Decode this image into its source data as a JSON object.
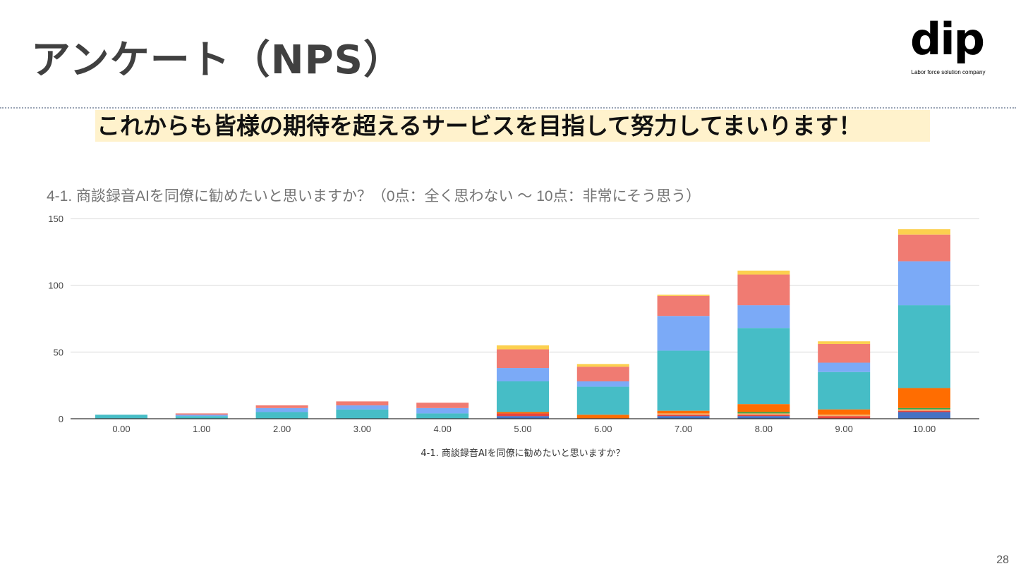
{
  "slide": {
    "title": "アンケート（NPS）",
    "tagline": "これからも皆様の期待を超えるサービスを目指して努力してまいります！",
    "page_number": "28"
  },
  "logo": {
    "word": "dip",
    "tag": "Labor force solution company"
  },
  "chart_data": {
    "type": "bar",
    "stacked": true,
    "title": "4-1. 商談録音AIを同僚に勧めたいと思いますか？（0点：全く思わない 〜 10点：非常にそう思う）",
    "xlabel": "4-1. 商談録音AIを同僚に勧めたいと思いますか？",
    "ylabel": "",
    "ylim": [
      0,
      150
    ],
    "yticks": [
      0,
      50,
      100,
      150
    ],
    "grid": true,
    "categories": [
      "0.00",
      "1.00",
      "2.00",
      "3.00",
      "4.00",
      "5.00",
      "6.00",
      "7.00",
      "8.00",
      "9.00",
      "10.00"
    ],
    "series": [
      {
        "color": "#4472c4",
        "values": [
          0,
          0,
          0,
          0,
          0,
          2,
          0,
          2,
          2,
          0,
          5
        ]
      },
      {
        "color": "#e8453c",
        "values": [
          0,
          0,
          0,
          0,
          0,
          2,
          0,
          1,
          1,
          2,
          1
        ]
      },
      {
        "color": "#f6b26b",
        "values": [
          0,
          0,
          0,
          0,
          0,
          0,
          0,
          1,
          1,
          1,
          1
        ]
      },
      {
        "color": "#34a853",
        "values": [
          0,
          0,
          0,
          0,
          0,
          0,
          0,
          0,
          1,
          0,
          1
        ]
      },
      {
        "color": "#ff6d01",
        "values": [
          0,
          0,
          0,
          0,
          0,
          1,
          3,
          2,
          6,
          4,
          15
        ]
      },
      {
        "color": "#46bdc6",
        "values": [
          3,
          2,
          5,
          7,
          4,
          23,
          21,
          45,
          57,
          28,
          62
        ]
      },
      {
        "color": "#7baaf7",
        "values": [
          0,
          1,
          3,
          3,
          4,
          10,
          4,
          26,
          17,
          7,
          33
        ]
      },
      {
        "color": "#f07b72",
        "values": [
          0,
          1,
          2,
          3,
          4,
          14,
          11,
          15,
          23,
          14,
          20
        ]
      },
      {
        "color": "#fcd04f",
        "values": [
          0,
          0,
          0,
          0,
          0,
          3,
          2,
          1,
          3,
          2,
          4
        ]
      }
    ]
  }
}
